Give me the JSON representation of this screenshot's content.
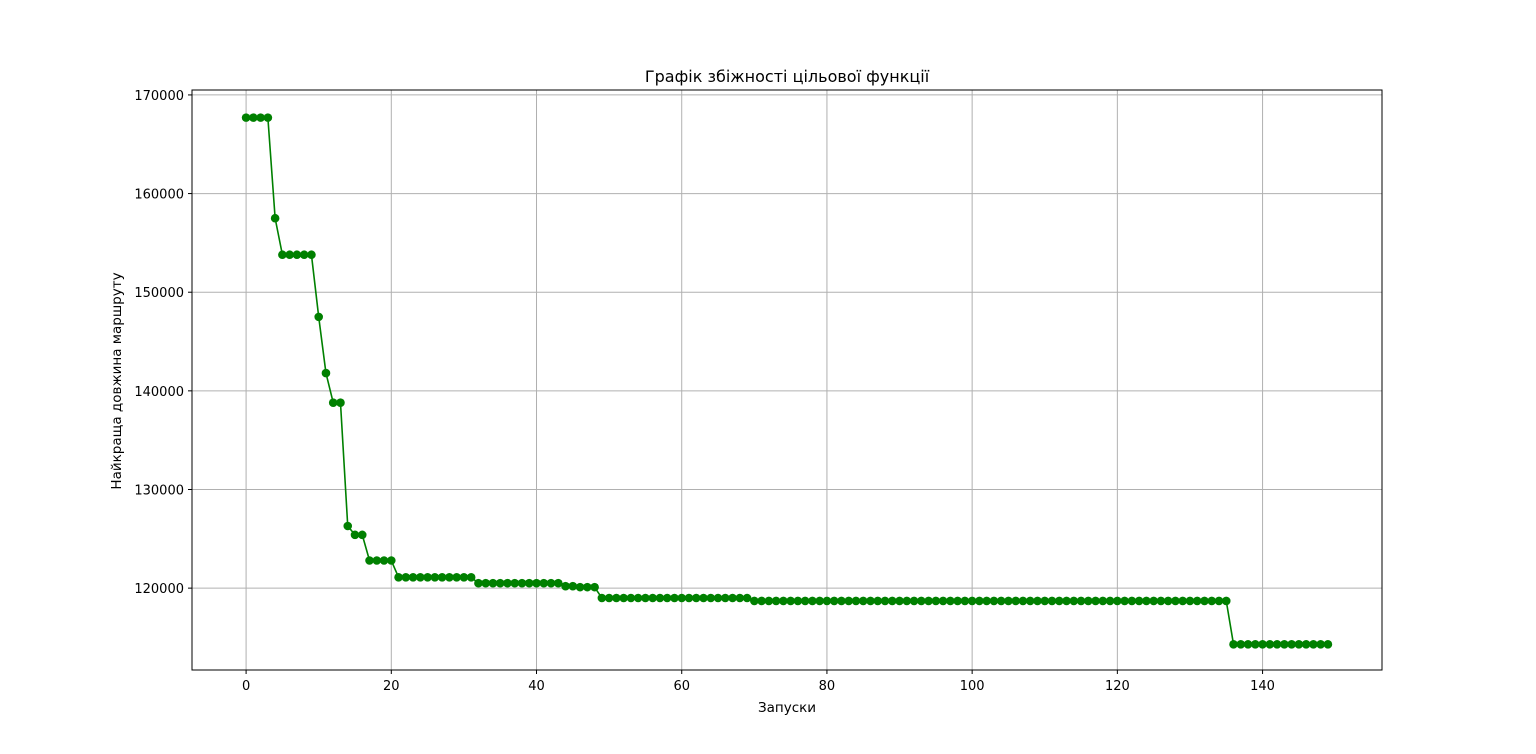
{
  "chart_data": {
    "type": "line",
    "title": "Графік збіжності цільової функції",
    "xlabel": "Запуски",
    "ylabel": "Найкраща довжина маршруту",
    "xlim": [
      -7.45,
      156.45
    ],
    "ylim": [
      111700,
      170500
    ],
    "xticks": [
      0,
      20,
      40,
      60,
      80,
      100,
      120,
      140
    ],
    "yticks": [
      120000,
      130000,
      140000,
      150000,
      160000,
      170000
    ],
    "grid": true,
    "color": "#008000",
    "marker": "circle",
    "x_start": 0,
    "series": [
      {
        "values": [
          167700,
          167700,
          167700,
          167700,
          157500,
          153800,
          153800,
          153800,
          153800,
          153800,
          147500,
          141800,
          138800,
          138800,
          126300,
          125400,
          125400,
          122800,
          122800,
          122800,
          122800,
          121100,
          121100,
          121100,
          121100,
          121100,
          121100,
          121100,
          121100,
          121100,
          121100,
          121100,
          120500,
          120500,
          120500,
          120500,
          120500,
          120500,
          120500,
          120500,
          120500,
          120500,
          120500,
          120500,
          120200,
          120200,
          120100,
          120100,
          120100,
          119000,
          119000,
          119000,
          119000,
          119000,
          119000,
          119000,
          119000,
          119000,
          119000,
          119000,
          119000,
          119000,
          119000,
          119000,
          119000,
          119000,
          119000,
          119000,
          119000,
          119000,
          118700,
          118700,
          118700,
          118700,
          118700,
          118700,
          118700,
          118700,
          118700,
          118700,
          118700,
          118700,
          118700,
          118700,
          118700,
          118700,
          118700,
          118700,
          118700,
          118700,
          118700,
          118700,
          118700,
          118700,
          118700,
          118700,
          118700,
          118700,
          118700,
          118700,
          118700,
          118700,
          118700,
          118700,
          118700,
          118700,
          118700,
          118700,
          118700,
          118700,
          118700,
          118700,
          118700,
          118700,
          118700,
          118700,
          118700,
          118700,
          118700,
          118700,
          118700,
          118700,
          118700,
          118700,
          118700,
          118700,
          118700,
          118700,
          118700,
          118700,
          118700,
          118700,
          118700,
          118700,
          118700,
          118700,
          114300,
          114300,
          114300,
          114300,
          114300,
          114300,
          114300,
          114300,
          114300,
          114300,
          114300,
          114300,
          114300,
          114300
        ]
      }
    ]
  }
}
